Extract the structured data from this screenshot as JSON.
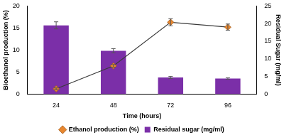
{
  "chart_data": {
    "type": "bar",
    "x_label": "Time (hours)",
    "y_label": "Bioethanol production (%)",
    "y2_label": "Residual Sugar (mg/ml)",
    "categories": [
      "24",
      "48",
      "72",
      "96"
    ],
    "series": [
      {
        "name": "Residual sugar (mg/ml)",
        "type": "bar",
        "color": "#7b2fa8",
        "axis": "y2",
        "values": [
          19.5,
          12.3,
          4.7,
          4.4
        ],
        "errors": [
          1.0,
          0.6,
          0.3,
          0.2
        ]
      },
      {
        "name": "Ethanol production (%)",
        "type": "line",
        "color": "#e8872f",
        "marker": "diamond",
        "values": [
          1.2,
          6.4,
          16.3,
          15.2
        ],
        "errors": [
          0.2,
          0.3,
          0.8,
          0.7
        ]
      }
    ],
    "ylim": [
      0,
      20
    ],
    "yticks": [
      0,
      5,
      10,
      15,
      20
    ],
    "y2lim": [
      0,
      25
    ],
    "y2ticks": [
      0,
      5,
      10,
      15,
      20,
      25
    ],
    "grid": false,
    "legend": "bottom"
  }
}
